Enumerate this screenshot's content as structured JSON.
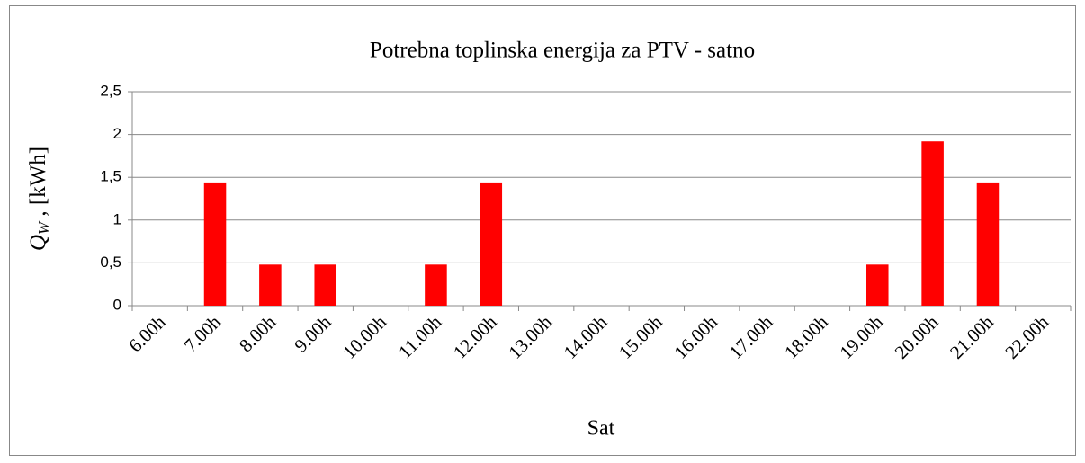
{
  "chart_data": {
    "type": "bar",
    "title": "Potrebna toplinska energija za PTV - satno",
    "xlabel": "Sat",
    "ylabel": {
      "symbol": "Q",
      "subscript": "W",
      "unit": " , [kWh]"
    },
    "categories": [
      "6.00h",
      "7.00h",
      "8.00h",
      "9.00h",
      "10.00h",
      "11.00h",
      "12.00h",
      "13.00h",
      "14.00h",
      "15.00h",
      "16.00h",
      "17.00h",
      "18.00h",
      "19.00h",
      "20.00h",
      "21.00h",
      "22.00h"
    ],
    "values": [
      0,
      1.44,
      0.48,
      0.48,
      0,
      0.48,
      1.44,
      0,
      0,
      0,
      0,
      0,
      0,
      0.48,
      1.92,
      1.44,
      0
    ],
    "color": "#ff0000",
    "ylim": [
      0,
      2.5
    ],
    "yticks": [
      0,
      {
        "value": 0.5,
        "label": "0,5"
      },
      1,
      {
        "value": 1.5,
        "label": "1,5"
      },
      2,
      {
        "value": 2.5,
        "label": "2,5"
      }
    ],
    "grid": true
  }
}
